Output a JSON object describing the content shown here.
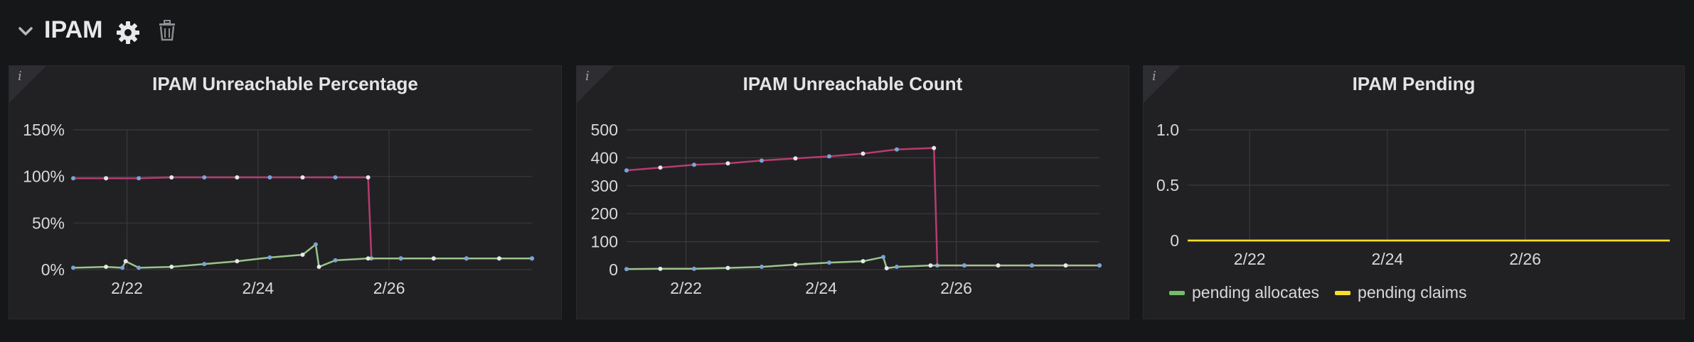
{
  "row": {
    "title": "IPAM"
  },
  "icons": {
    "collapse": "chevron-down-icon",
    "settings": "gear-icon",
    "delete": "trash-icon",
    "info": "info-icon"
  },
  "panels": [
    {
      "title": "IPAM Unreachable Percentage",
      "info_glyph": "i"
    },
    {
      "title": "IPAM Unreachable Count",
      "info_glyph": "i"
    },
    {
      "title": "IPAM Pending",
      "info_glyph": "i"
    }
  ],
  "colors": {
    "background": "#161719",
    "panel": "#212124",
    "grid": "#3a3a3e",
    "text": "#d8d9da",
    "pending_allocates": "#73bf69",
    "pending_claims": "#fade2a",
    "high_series": "#b83b6e",
    "low_series": "#9ac48a"
  },
  "chart_data": [
    {
      "type": "line",
      "title": "IPAM Unreachable Percentage",
      "x_ticks": [
        "2/22",
        "2/24",
        "2/26"
      ],
      "y_ticks": [
        "0%",
        "50%",
        "100%",
        "150%"
      ],
      "ylim": [
        0,
        150
      ],
      "grid": true,
      "series": [
        {
          "x": [
            0,
            0.5,
            1,
            1.5,
            2,
            2.5,
            3,
            3.5,
            4,
            4.5,
            4.55,
            5,
            5.5,
            6,
            6.5,
            7
          ],
          "values": [
            98,
            98,
            98,
            99,
            99,
            99,
            99,
            99,
            99,
            99,
            12,
            12,
            12,
            12,
            12,
            12
          ],
          "color": "#b83b6e"
        },
        {
          "x": [
            0,
            0.5,
            0.75,
            0.8,
            1,
            1.5,
            2,
            2.5,
            3,
            3.5,
            3.7,
            3.75,
            4,
            4.5,
            5,
            5.5,
            6,
            6.5,
            7
          ],
          "values": [
            2,
            3,
            2,
            9,
            2,
            3,
            6,
            9,
            13,
            16,
            27,
            3,
            10,
            12,
            12,
            12,
            12,
            12,
            12
          ],
          "color": "#9ac48a"
        }
      ]
    },
    {
      "type": "line",
      "title": "IPAM Unreachable Count",
      "x_ticks": [
        "2/22",
        "2/24",
        "2/26"
      ],
      "y_ticks": [
        "0",
        "100",
        "200",
        "300",
        "400",
        "500"
      ],
      "ylim": [
        0,
        500
      ],
      "grid": true,
      "series": [
        {
          "x": [
            0,
            0.5,
            1,
            1.5,
            2,
            2.5,
            3,
            3.5,
            4,
            4.55,
            4.6,
            5,
            5.5,
            6,
            6.5,
            7
          ],
          "values": [
            355,
            365,
            375,
            380,
            390,
            398,
            405,
            415,
            430,
            435,
            15,
            15,
            15,
            15,
            15,
            15
          ],
          "color": "#b83b6e"
        },
        {
          "x": [
            0,
            0.5,
            1,
            1.5,
            2,
            2.5,
            3,
            3.5,
            3.8,
            3.85,
            4,
            4.5,
            5,
            5.5,
            6,
            6.5,
            7
          ],
          "values": [
            2,
            3,
            3,
            6,
            10,
            18,
            25,
            30,
            45,
            5,
            10,
            15,
            15,
            15,
            15,
            15,
            15
          ],
          "color": "#9ac48a"
        }
      ]
    },
    {
      "type": "line",
      "title": "IPAM Pending",
      "x_ticks": [
        "2/22",
        "2/24",
        "2/26"
      ],
      "y_ticks": [
        "0",
        "0.5",
        "1.0"
      ],
      "ylim": [
        0,
        1
      ],
      "grid": true,
      "legend": "bottom-left",
      "series": [
        {
          "name": "pending allocates",
          "x": [
            0,
            7
          ],
          "values": [
            0,
            0
          ],
          "color": "#73bf69"
        },
        {
          "name": "pending claims",
          "x": [
            0,
            7
          ],
          "values": [
            0,
            0
          ],
          "color": "#fade2a"
        }
      ]
    }
  ],
  "legend3": [
    {
      "label": "pending allocates",
      "color": "#73bf69"
    },
    {
      "label": "pending claims",
      "color": "#fade2a"
    }
  ]
}
